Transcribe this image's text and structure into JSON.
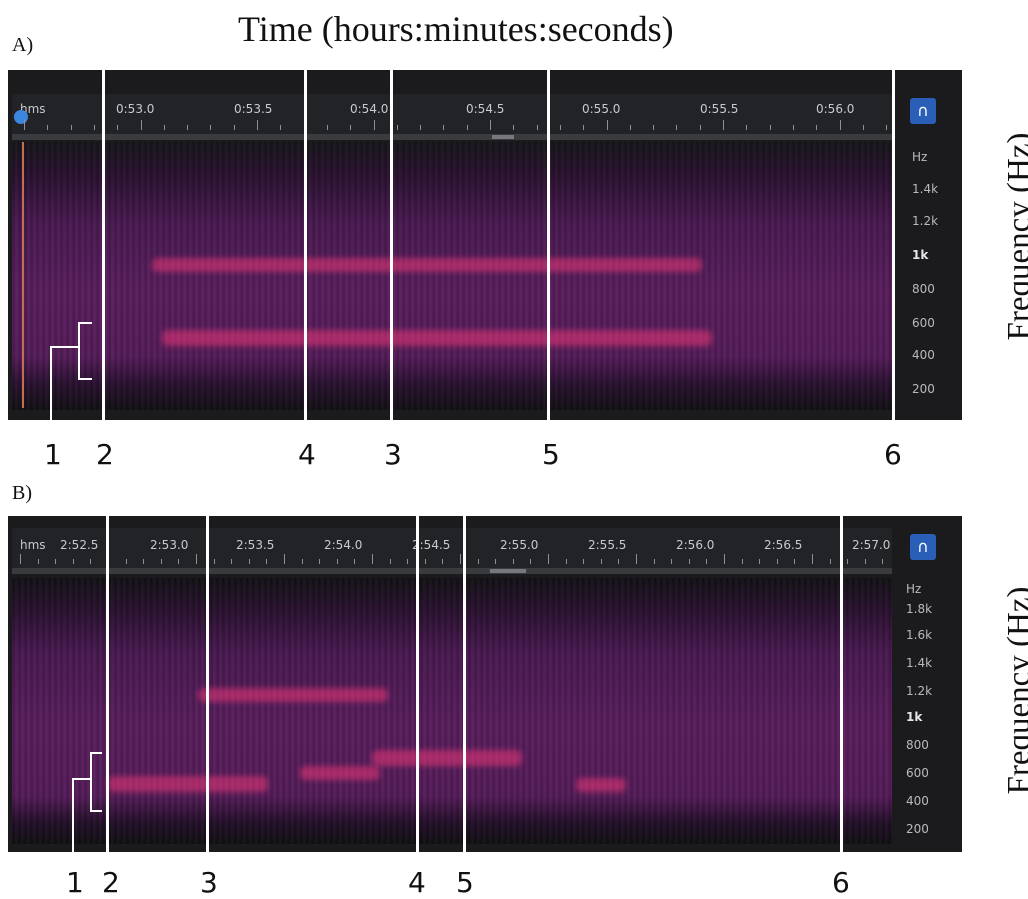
{
  "title": "Time (hours:minutes:seconds)",
  "y_axis_label": "Frequency (Hz)",
  "icons": {
    "marker": "playhead-marker-icon",
    "snap": "magnet-icon"
  },
  "colors": {
    "background": "#1b1b1d",
    "spectrogram_base": "#5a1f5e",
    "band": "#eb3778",
    "marker_lines": "#ffffff"
  },
  "panels": [
    {
      "letter": "A)",
      "ruler_prefix": "hms",
      "time_labels": [
        "0:53.0",
        "0:53.5",
        "0:54.0",
        "0:54.5",
        "0:55.0",
        "0:55.5",
        "0:56.0"
      ],
      "hz_unit": "Hz",
      "hz_labels": [
        "1.4k",
        "1.2k",
        "1k",
        "800",
        "600",
        "400",
        "200"
      ],
      "markers": [
        "1",
        "2",
        "4",
        "3",
        "5",
        "6"
      ]
    },
    {
      "letter": "B)",
      "ruler_prefix": "hms",
      "time_labels": [
        "2:52.5",
        "2:53.0",
        "2:53.5",
        "2:54.0",
        "2:54.5",
        "2:55.0",
        "2:55.5",
        "2:56.0",
        "2:56.5",
        "2:57.0"
      ],
      "hz_unit": "Hz",
      "hz_labels": [
        "1.8k",
        "1.6k",
        "1.4k",
        "1.2k",
        "1k",
        "800",
        "600",
        "400",
        "200"
      ],
      "markers": [
        "1",
        "2",
        "3",
        "4",
        "5",
        "6"
      ]
    }
  ]
}
